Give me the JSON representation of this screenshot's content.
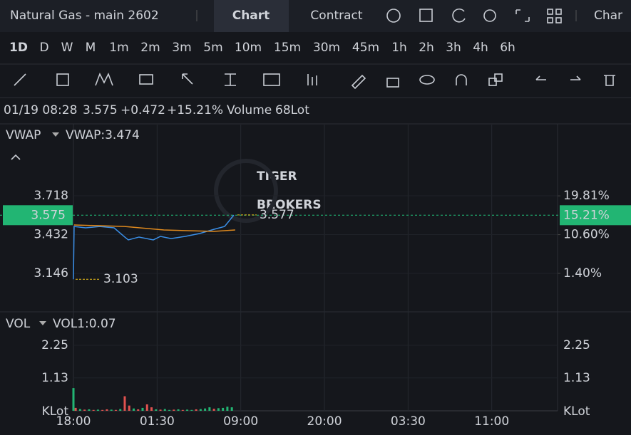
{
  "header": {
    "title": "Natural Gas - main 2602",
    "tabs": [
      "Chart",
      "Contract"
    ],
    "more": "Char"
  },
  "timeframes": [
    "1D",
    "D",
    "W",
    "M",
    "1m",
    "2m",
    "3m",
    "5m",
    "10m",
    "15m",
    "30m",
    "45m",
    "1h",
    "2h",
    "3h",
    "4h",
    "6h"
  ],
  "quote": {
    "time": "01/19 08:28",
    "price": "3.575",
    "change": "+0.472",
    "change_pct": "+15.21%",
    "volume_label": "Volume",
    "volume": "68Lot"
  },
  "watermark": [
    "TIGER",
    "BROKERS"
  ],
  "chart_data": [
    {
      "type": "line",
      "indicator": "VWAP",
      "indicator_value": "VWAP:3.474",
      "xlim": [
        0,
        43.4
      ],
      "ylim": [
        2.868,
        4.243
      ],
      "yticks": [
        3.146,
        3.432,
        3.718
      ],
      "y2lim": [
        -7.57,
        36.74
      ],
      "y2ticks": [
        {
          "value": 1.4,
          "label": "1.40%"
        },
        {
          "value": 10.6,
          "label": "10.60%"
        },
        {
          "value": 19.81,
          "label": "19.81%"
        }
      ],
      "current": 3.575,
      "current_pct": {
        "value": 15.21,
        "label": "15.21%"
      },
      "high": 3.577,
      "low": 3.103,
      "series": [
        {
          "color": "#3a8fe8",
          "x": [
            0,
            0.06,
            1.09,
            2.36,
            3.64,
            4.6,
            4.92,
            5.88,
            7.16,
            7.8,
            8.75,
            10.03,
            11.31,
            12.59,
            13.55,
            14.38
          ],
          "values": [
            3.103,
            3.492,
            3.482,
            3.492,
            3.482,
            3.414,
            3.393,
            3.414,
            3.393,
            3.419,
            3.403,
            3.419,
            3.44,
            3.471,
            3.492,
            3.576
          ]
        },
        {
          "color": "#e08a1e",
          "x": [
            0.06,
            4.6,
            8.11,
            12.59,
            14.5
          ],
          "values": [
            3.503,
            3.492,
            3.466,
            3.456,
            3.466
          ]
        }
      ]
    },
    {
      "type": "bar",
      "indicator": "VOL",
      "indicator_value": "VOL1:0.07",
      "unit": "KLot",
      "xlim": [
        0,
        43.4
      ],
      "ylim": [
        0,
        3.35
      ],
      "yticks": [
        1.13,
        2.25
      ],
      "xticks": [
        {
          "value": 0,
          "label": "18:00"
        },
        {
          "value": 7.5,
          "label": "01:30"
        },
        {
          "value": 15,
          "label": "09:00"
        },
        {
          "value": 22.5,
          "label": "20:00"
        },
        {
          "value": 30,
          "label": "03:30"
        },
        {
          "value": 37.5,
          "label": "11:00"
        }
      ],
      "x": [
        0,
        0.2,
        0.6,
        1.0,
        1.4,
        1.8,
        2.2,
        2.6,
        3.0,
        3.4,
        3.8,
        4.2,
        4.6,
        5.0,
        5.4,
        5.8,
        6.2,
        6.6,
        7.0,
        7.4,
        7.8,
        8.2,
        8.6,
        9.0,
        9.4,
        9.8,
        10.2,
        10.6,
        11.0,
        11.4,
        11.8,
        12.2,
        12.6,
        13.0,
        13.4,
        13.8,
        14.2
      ],
      "values": [
        0.78,
        0.1,
        0.06,
        0.04,
        0.05,
        0.03,
        0.04,
        0.03,
        0.05,
        0.04,
        0.03,
        0.06,
        0.5,
        0.18,
        0.08,
        0.05,
        0.1,
        0.22,
        0.12,
        0.05,
        0.04,
        0.06,
        0.03,
        0.04,
        0.05,
        0.03,
        0.04,
        0.03,
        0.05,
        0.06,
        0.08,
        0.12,
        0.07,
        0.09,
        0.1,
        0.14,
        0.12
      ],
      "colors": [
        "#22b573",
        "#e0524f",
        "#22b573",
        "#e0524f",
        "#22b573",
        "#e0524f",
        "#22b573",
        "#e0524f",
        "#e0524f",
        "#22b573",
        "#e0524f",
        "#22b573",
        "#e0524f",
        "#e0524f",
        "#22b573",
        "#e0524f",
        "#22b573",
        "#e0524f",
        "#e0524f",
        "#22b573",
        "#e0524f",
        "#22b573",
        "#22b573",
        "#e0524f",
        "#22b573",
        "#e0524f",
        "#22b573",
        "#22b573",
        "#e0524f",
        "#22b573",
        "#22b573",
        "#22b573",
        "#e0524f",
        "#22b573",
        "#22b573",
        "#22b573",
        "#22b573"
      ]
    }
  ]
}
